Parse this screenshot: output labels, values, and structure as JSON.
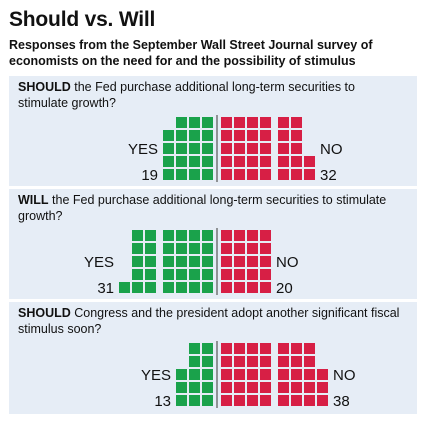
{
  "header": {
    "title": "Should vs. Will",
    "subtitle": "Responses from the September Wall Street Journal survey of economists on the need for and the possibility of stimulus"
  },
  "colors": {
    "yes": "#1aa24b",
    "no": "#d71f45",
    "panel": "#e6edf6",
    "divider": "#555555"
  },
  "chart_data": [
    {
      "type": "waffle",
      "question_keyword": "SHOULD",
      "question_rest": " the Fed purchase additional long-term securities to stimulate growth?",
      "yes_label": "YES",
      "no_label": "NO",
      "categories": [
        "YES",
        "NO"
      ],
      "values": [
        19,
        32
      ]
    },
    {
      "type": "waffle",
      "question_keyword": "WILL",
      "question_rest": " the Fed purchase additional long-term securities to stimulate growth?",
      "yes_label": "YES",
      "no_label": "NO",
      "categories": [
        "YES",
        "NO"
      ],
      "values": [
        31,
        20
      ]
    },
    {
      "type": "waffle",
      "question_keyword": "SHOULD",
      "question_rest": " Congress and the president adopt another significant fiscal stimulus soon?",
      "yes_label": "YES",
      "no_label": "NO",
      "categories": [
        "YES",
        "NO"
      ],
      "values": [
        13,
        38
      ]
    }
  ]
}
